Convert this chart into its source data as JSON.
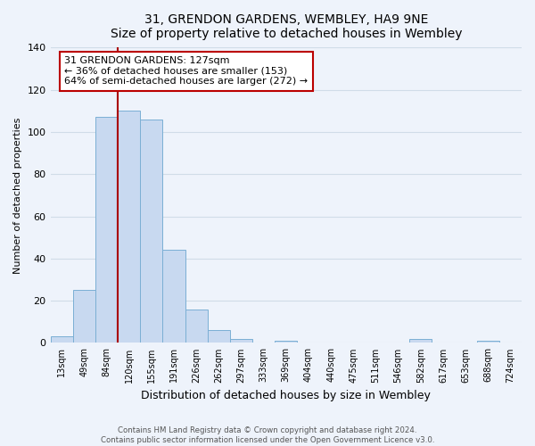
{
  "title": "31, GRENDON GARDENS, WEMBLEY, HA9 9NE",
  "subtitle": "Size of property relative to detached houses in Wembley",
  "xlabel": "Distribution of detached houses by size in Wembley",
  "ylabel": "Number of detached properties",
  "bin_labels": [
    "13sqm",
    "49sqm",
    "84sqm",
    "120sqm",
    "155sqm",
    "191sqm",
    "226sqm",
    "262sqm",
    "297sqm",
    "333sqm",
    "369sqm",
    "404sqm",
    "440sqm",
    "475sqm",
    "511sqm",
    "546sqm",
    "582sqm",
    "617sqm",
    "653sqm",
    "688sqm",
    "724sqm"
  ],
  "bin_counts": [
    3,
    25,
    107,
    110,
    106,
    44,
    16,
    6,
    2,
    0,
    1,
    0,
    0,
    0,
    0,
    0,
    2,
    0,
    0,
    1,
    0
  ],
  "bar_color": "#c8d9f0",
  "bar_edge_color": "#7bafd4",
  "vline_x_index": 3,
  "vline_color": "#aa0000",
  "annotation_line1": "31 GRENDON GARDENS: 127sqm",
  "annotation_line2": "← 36% of detached houses are smaller (153)",
  "annotation_line3": "64% of semi-detached houses are larger (272) →",
  "annotation_box_color": "#ffffff",
  "annotation_box_edge_color": "#bb0000",
  "ylim": [
    0,
    140
  ],
  "yticks": [
    0,
    20,
    40,
    60,
    80,
    100,
    120,
    140
  ],
  "footer_text": "Contains HM Land Registry data © Crown copyright and database right 2024.\nContains public sector information licensed under the Open Government Licence v3.0.",
  "background_color": "#eef3fb",
  "grid_color": "#d0dce8"
}
